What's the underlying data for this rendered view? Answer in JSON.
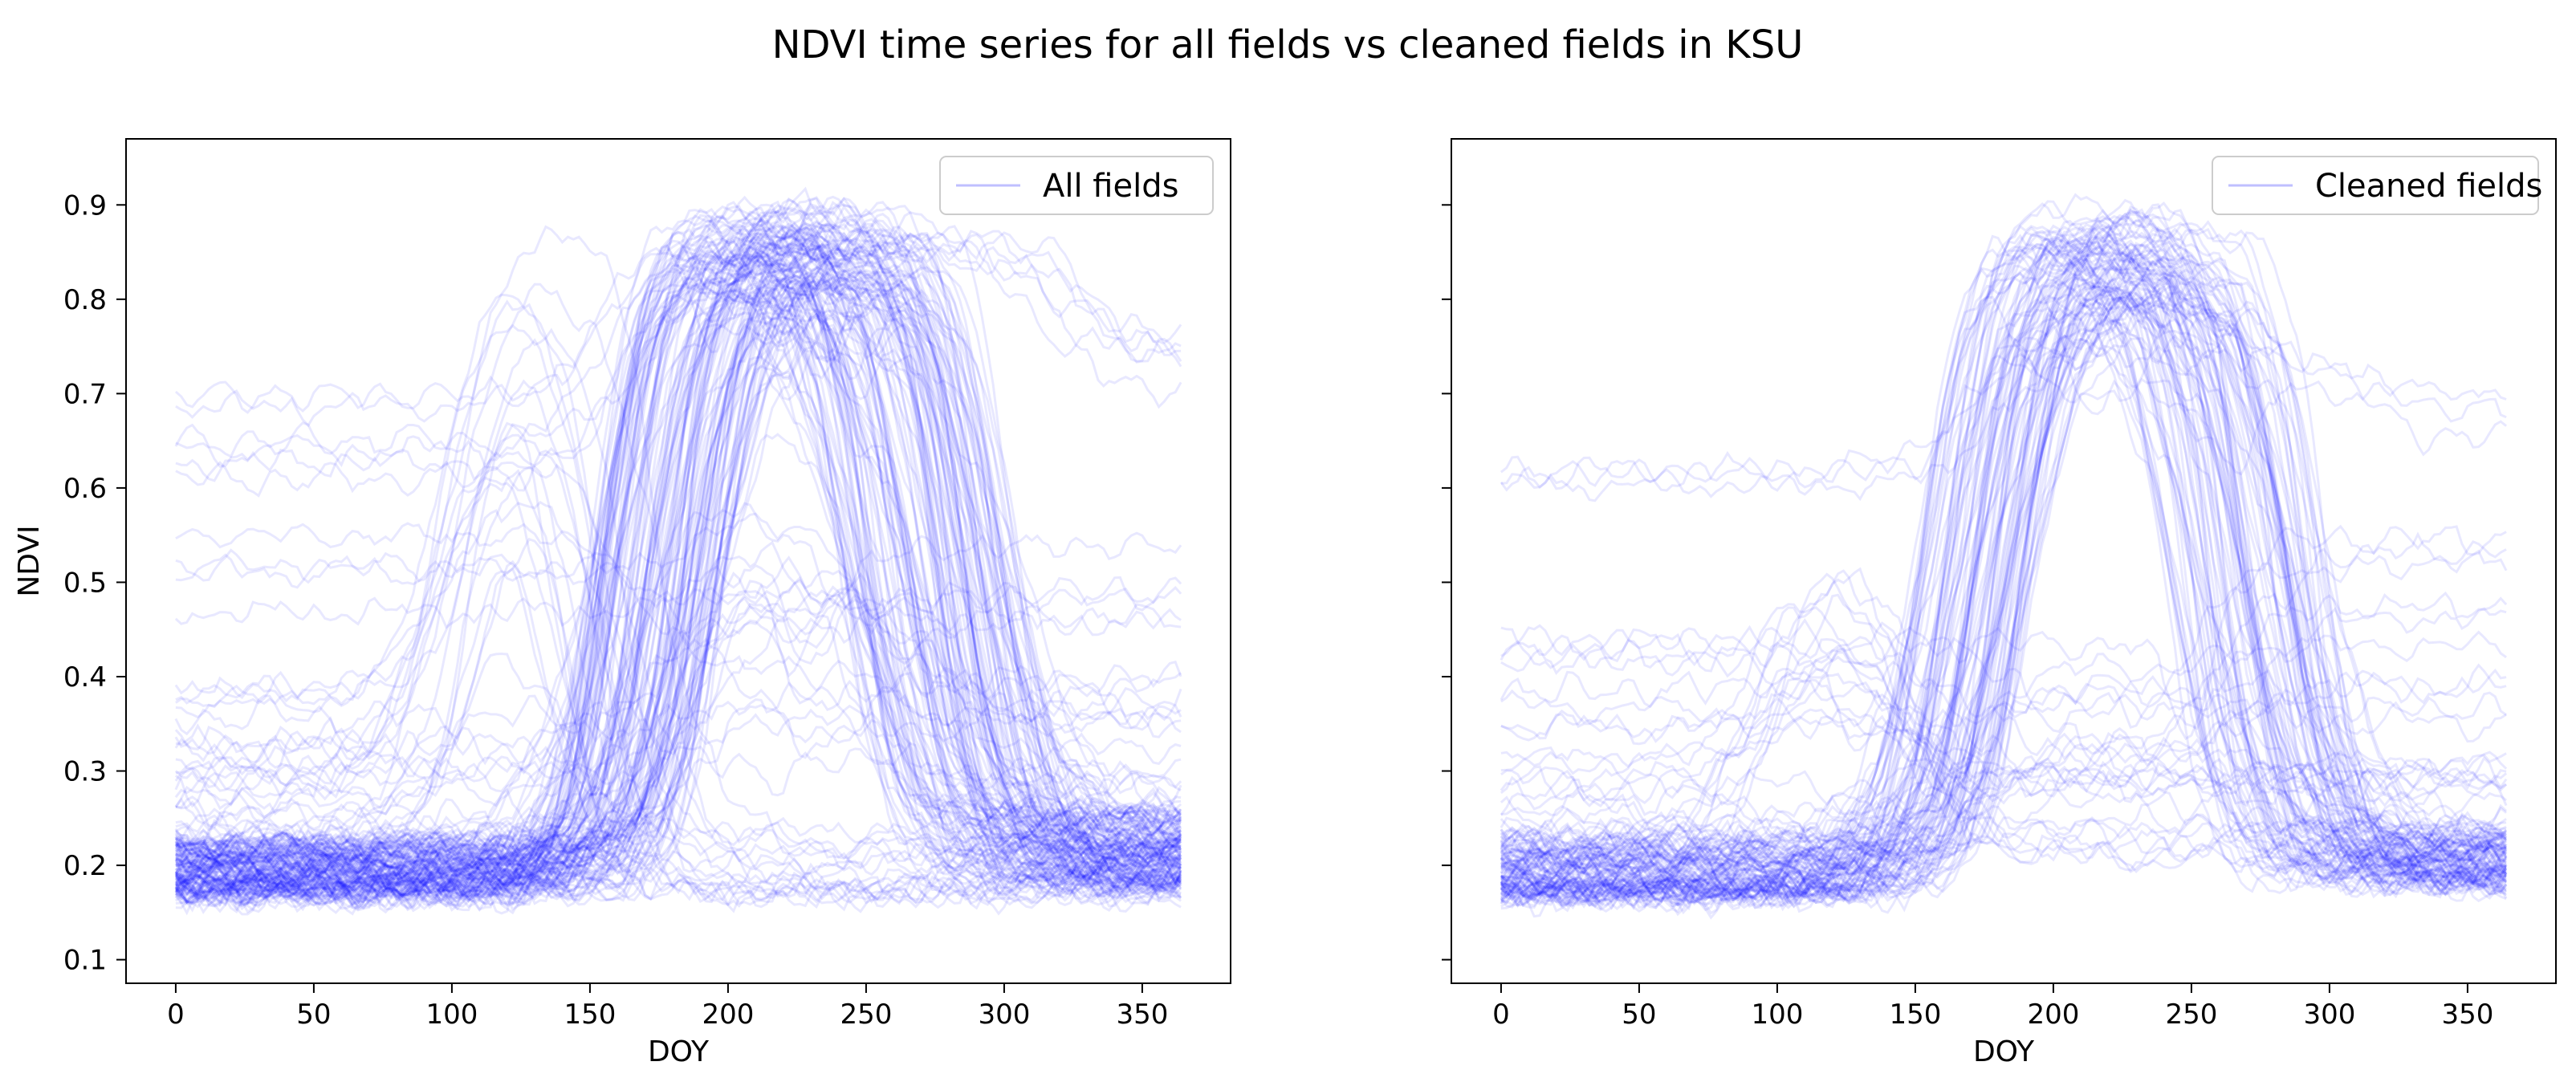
{
  "figure": {
    "title": "NDVI time series for all fields vs cleaned fields in KSU"
  },
  "colors": {
    "series": "#0000ff",
    "axes": "#000000",
    "background": "#ffffff"
  },
  "chart_data": [
    {
      "type": "line",
      "legend": "All fields",
      "legend_position": "top-right",
      "xlabel": "DOY",
      "ylabel": "NDVI",
      "xlim": [
        -18,
        382
      ],
      "ylim": [
        0.075,
        0.97
      ],
      "xticks": [
        0,
        50,
        100,
        150,
        200,
        250,
        300,
        350
      ],
      "yticks": [
        0.1,
        0.2,
        0.3,
        0.4,
        0.5,
        0.6,
        0.7,
        0.8,
        0.9
      ],
      "line_alpha": 0.09,
      "ensembles": [
        {
          "kind": "summer_crop",
          "count": 130,
          "base": [
            0.17,
            0.23
          ],
          "onset": [
            150,
            200
          ],
          "peak": [
            0.8,
            0.9
          ],
          "senescence": [
            240,
            305
          ],
          "late_base": [
            0.18,
            0.26
          ]
        },
        {
          "kind": "spring_crop",
          "count": 18,
          "base": [
            0.2,
            0.4
          ],
          "onset": [
            85,
            112
          ],
          "peak": [
            0.55,
            0.9
          ],
          "senescence": [
            128,
            175
          ],
          "late_base": [
            0.17,
            0.25
          ]
        },
        {
          "kind": "low_vegetation",
          "count": 20,
          "base": [
            0.2,
            0.55
          ],
          "onset": [
            160,
            200
          ],
          "peak": [
            0.3,
            0.6
          ],
          "senescence": [
            240,
            290
          ],
          "late_base": [
            0.25,
            0.55
          ]
        },
        {
          "kind": "perennial",
          "count": 6,
          "base": [
            0.6,
            0.7
          ],
          "onset": [
            140,
            170
          ],
          "peak": [
            0.8,
            0.88
          ],
          "senescence": [
            300,
            340
          ],
          "late_base": [
            0.7,
            0.78
          ]
        }
      ]
    },
    {
      "type": "line",
      "legend": "Cleaned fields",
      "legend_position": "top-right",
      "xlabel": "DOY",
      "ylabel": "",
      "xlim": [
        -18,
        382
      ],
      "ylim": [
        0.075,
        0.97
      ],
      "xticks": [
        0,
        50,
        100,
        150,
        200,
        250,
        300,
        350
      ],
      "yticks": [
        0.1,
        0.2,
        0.3,
        0.4,
        0.5,
        0.6,
        0.7,
        0.8,
        0.9
      ],
      "line_alpha": 0.09,
      "ensembles": [
        {
          "kind": "summer_crop",
          "count": 95,
          "base": [
            0.17,
            0.23
          ],
          "onset": [
            150,
            195
          ],
          "peak": [
            0.8,
            0.9
          ],
          "senescence": [
            240,
            300
          ],
          "late_base": [
            0.18,
            0.24
          ]
        },
        {
          "kind": "early_rise",
          "count": 14,
          "base": [
            0.2,
            0.45
          ],
          "onset": [
            75,
            110
          ],
          "peak": [
            0.35,
            0.55
          ],
          "senescence": [
            130,
            160
          ],
          "late_base": [
            0.2,
            0.3
          ]
        },
        {
          "kind": "low_vegetation",
          "count": 12,
          "base": [
            0.2,
            0.45
          ],
          "onset": [
            170,
            200
          ],
          "peak": [
            0.3,
            0.55
          ],
          "senescence": [
            245,
            290
          ],
          "late_base": [
            0.3,
            0.55
          ]
        },
        {
          "kind": "perennial",
          "count": 3,
          "base": [
            0.6,
            0.66
          ],
          "onset": [
            150,
            175
          ],
          "peak": [
            0.7,
            0.78
          ],
          "senescence": [
            310,
            340
          ],
          "late_base": [
            0.65,
            0.72
          ]
        }
      ]
    }
  ]
}
